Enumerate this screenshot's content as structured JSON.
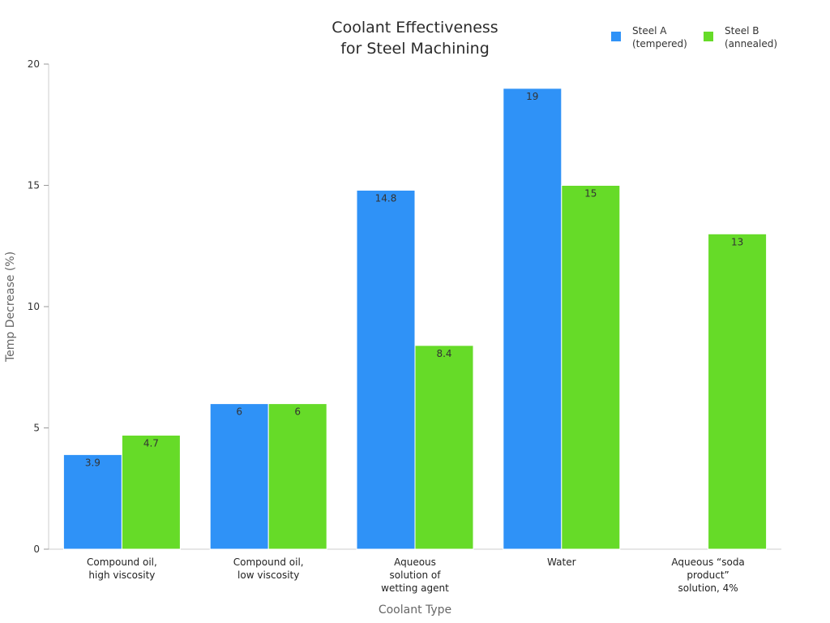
{
  "chart_data": {
    "type": "bar",
    "title": [
      "Coolant Effectiveness",
      "for Steel Machining"
    ],
    "xlabel": "Coolant Type",
    "ylabel": "Temp Decrease (%)",
    "ylim": [
      0,
      20
    ],
    "yticks": [
      0,
      5,
      10,
      15,
      20
    ],
    "categories": [
      [
        "Compound oil,",
        "high viscosity"
      ],
      [
        "Compound oil,",
        "low viscosity"
      ],
      [
        "Aqueous",
        "solution of",
        "wetting agent"
      ],
      [
        "Water"
      ],
      [
        "Aqueous “soda",
        "product”",
        "solution, 4%"
      ]
    ],
    "series": [
      {
        "name": [
          "Steel A",
          "(tempered)"
        ],
        "color": "#2f92f7",
        "values": [
          3.9,
          6,
          14.8,
          19,
          null
        ],
        "labels": [
          "3.9",
          "6",
          "14.8",
          "19",
          ""
        ]
      },
      {
        "name": [
          "Steel B",
          "(annealed)"
        ],
        "color": "#66db28",
        "values": [
          4.7,
          6,
          8.4,
          15,
          13
        ],
        "labels": [
          "4.7",
          "6",
          "8.4",
          "15",
          "13"
        ]
      }
    ],
    "legend": "top-right",
    "grid": false
  }
}
